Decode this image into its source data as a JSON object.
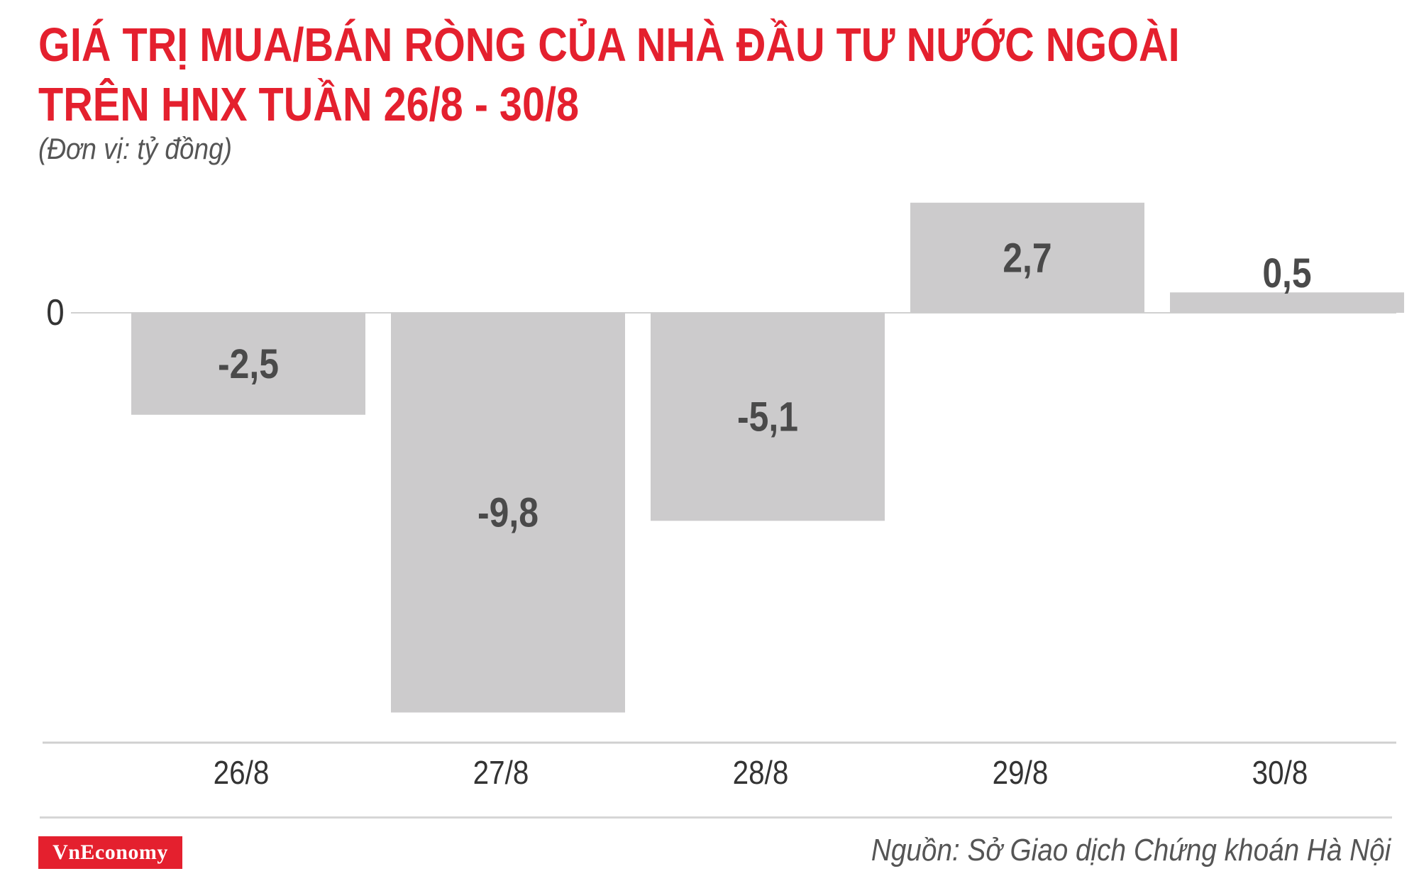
{
  "header": {
    "title_line1": "GIÁ TRỊ MUA/BÁN RÒNG CỦA NHÀ ĐẦU TƯ NƯỚC NGOÀI",
    "title_line2": "TRÊN HNX TUẦN 26/8 - 30/8",
    "unit": "(Đơn vị: tỷ đồng)"
  },
  "footer": {
    "logo_text": "VnEconomy",
    "source": "Nguồn: Sở Giao dịch Chứng khoán Hà Nội"
  },
  "colors": {
    "title": "#e4202e",
    "bar": "#cccbcc",
    "value_label": "#4a4a4a",
    "axis_label": "#333333"
  },
  "chart_data": {
    "type": "bar",
    "title": "GIÁ TRỊ MUA/BÁN RÒNG CỦA NHÀ ĐẦU TƯ NƯỚC NGOÀI TRÊN HNX TUẦN 26/8 - 30/8",
    "ylabel": "(Đơn vị: tỷ đồng)",
    "categories": [
      "26/8",
      "27/8",
      "28/8",
      "29/8",
      "30/8"
    ],
    "values": [
      -2.5,
      -9.8,
      -5.1,
      2.7,
      0.5
    ],
    "value_labels": [
      "-2,5",
      "-9,8",
      "-5,1",
      "2,7",
      "0,5"
    ],
    "zero_label": "0",
    "grid": false,
    "legend": "none"
  }
}
